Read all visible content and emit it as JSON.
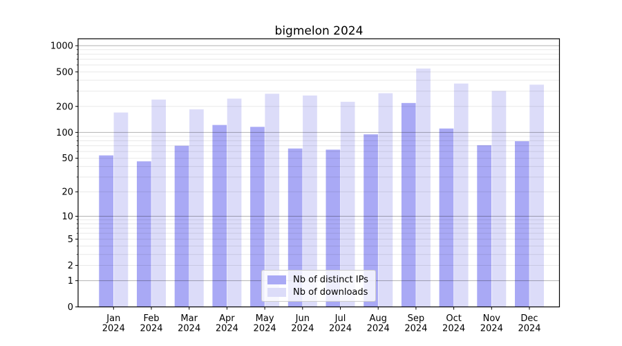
{
  "title": "bigmelon 2024",
  "chart_data": {
    "type": "bar",
    "title": "bigmelon 2024",
    "categories": [
      "Jan 2024",
      "Feb 2024",
      "Mar 2024",
      "Apr 2024",
      "May 2024",
      "Jun 2024",
      "Jul 2024",
      "Aug 2024",
      "Sep 2024",
      "Oct 2024",
      "Nov 2024",
      "Dec 2024"
    ],
    "series": [
      {
        "name": "Nb of distinct IPs",
        "color": "#a9a9f5",
        "values": [
          54,
          46,
          70,
          122,
          116,
          65,
          63,
          95,
          219,
          111,
          71,
          79
        ]
      },
      {
        "name": "Nb of downloads",
        "color": "#dcdcf9",
        "values": [
          170,
          240,
          185,
          246,
          280,
          267,
          226,
          284,
          546,
          367,
          301,
          356
        ]
      }
    ],
    "xlabel": "",
    "ylabel": "",
    "yscale": "log1p",
    "y_tick_values": [
      0,
      1,
      2,
      5,
      10,
      20,
      50,
      100,
      200,
      500,
      1000
    ],
    "y_tick_labels": [
      "0",
      "1",
      "2",
      "5",
      "10",
      "20",
      "50",
      "100",
      "200",
      "500",
      "1000"
    ],
    "ylim": [
      0,
      1085
    ],
    "grid": "both",
    "grid_major_values": [
      1,
      10,
      100,
      1000
    ],
    "legend_position": "lower center"
  },
  "legend": {
    "items": [
      {
        "label": "Nb of distinct IPs",
        "color": "#a9a9f5"
      },
      {
        "label": "Nb of downloads",
        "color": "#dcdcf9"
      }
    ]
  }
}
